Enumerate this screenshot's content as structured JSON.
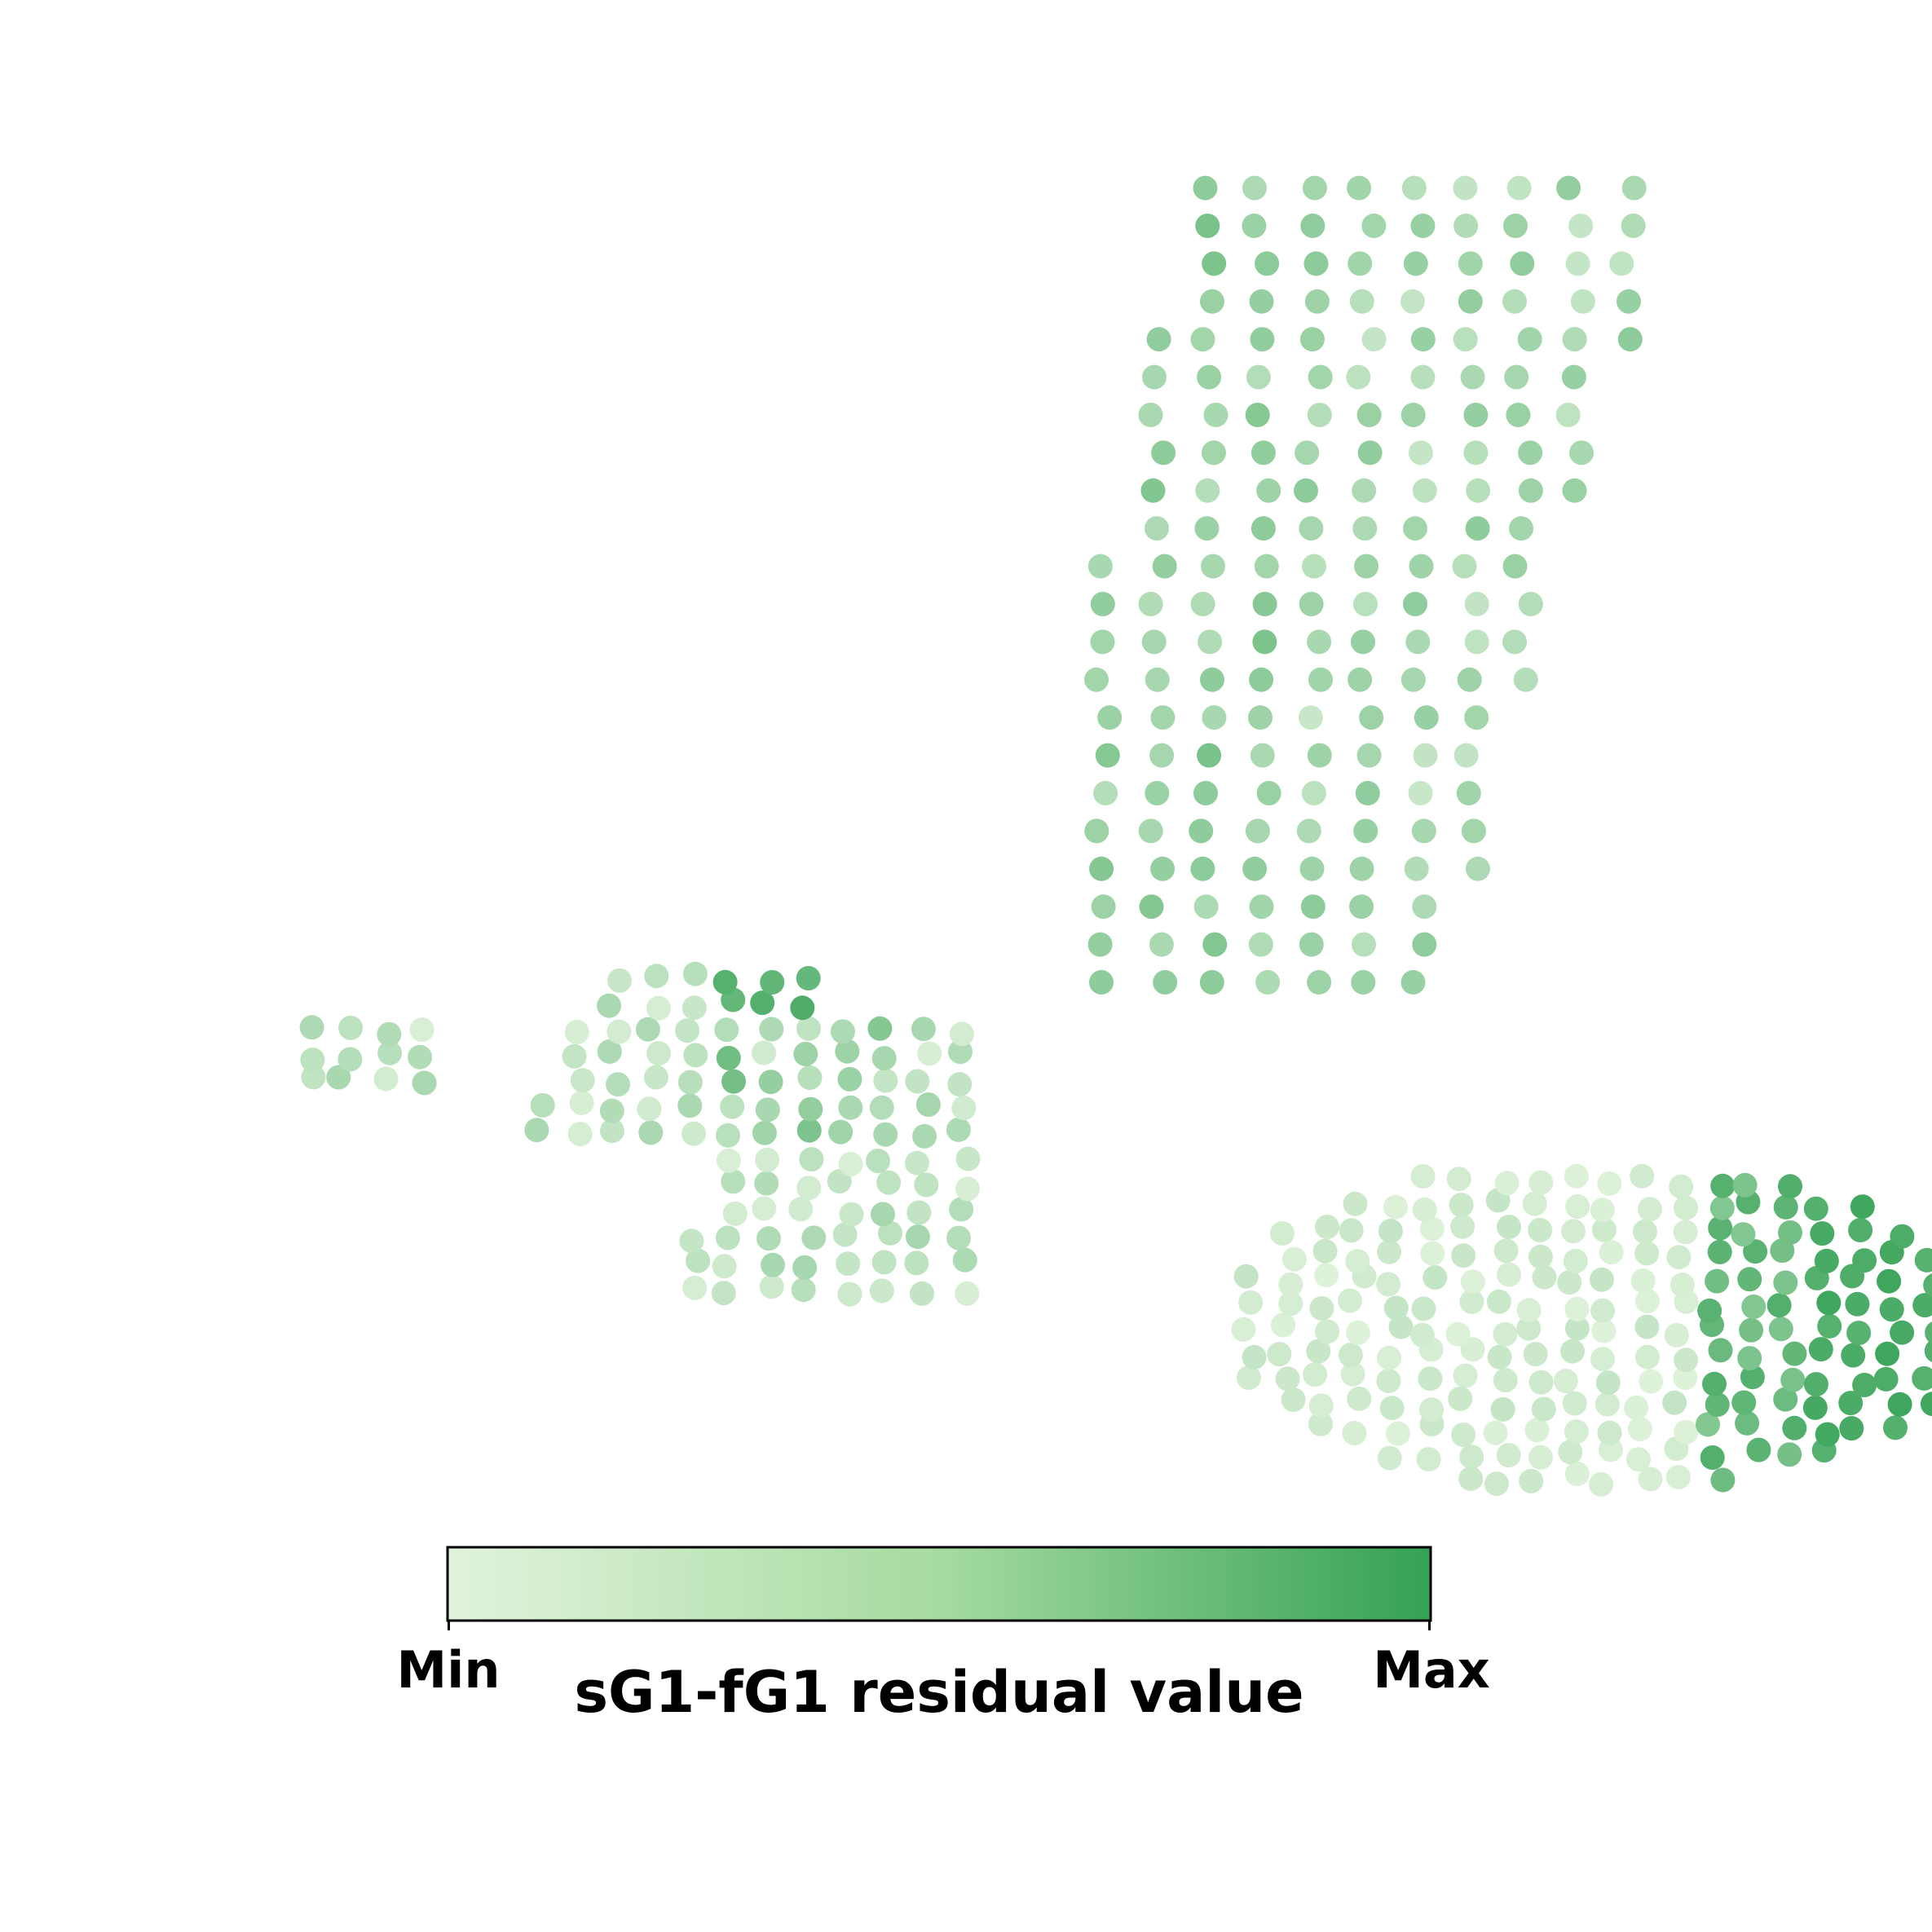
{
  "chart_data": {
    "type": "scatter",
    "title": "",
    "xlabel": "",
    "ylabel": "",
    "axes_visible": false,
    "colormap": {
      "name": "Greens",
      "label": "sG1-fG1 residual value",
      "min_label": "Min",
      "max_label": "Max",
      "color_low": "#e1f3dc",
      "color_high": "#35a155"
    },
    "regions": [
      {
        "x_range": [
          2,
          27
        ],
        "y_range": [
          0,
          36
        ],
        "dominant_value": 0.35,
        "note": "vertical stem, mid-light green"
      },
      {
        "x_range": [
          -25,
          0
        ],
        "y_range": [
          -12,
          2
        ],
        "dominant_value": 0.3,
        "note": "left fan; darkest at upper-left edge"
      },
      {
        "x_range": [
          8,
          36
        ],
        "y_range": [
          -20,
          -7
        ],
        "dominant_value": 0.25,
        "note": "lower-right lobe; darkest along right edge"
      }
    ],
    "points": []
  }
}
